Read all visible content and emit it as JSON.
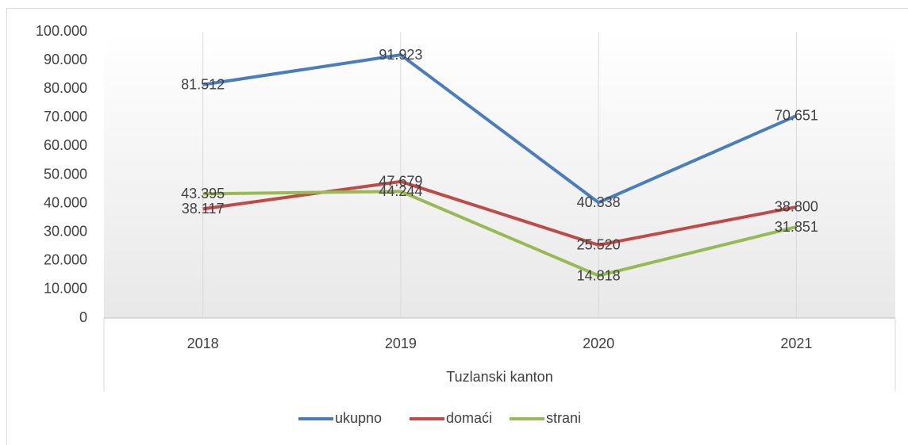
{
  "chart_data": {
    "type": "line",
    "categories": [
      "2018",
      "2019",
      "2020",
      "2021"
    ],
    "group_label": "Tuzlanski kanton",
    "series": [
      {
        "name": "ukupno",
        "color": "#4a7ebb",
        "values": [
          81512,
          91923,
          40338,
          70651
        ],
        "value_labels": [
          "81.512",
          "91.923",
          "40.338",
          "70.651"
        ]
      },
      {
        "name": "domaći",
        "color": "#be4b48",
        "values": [
          38117,
          47679,
          25520,
          38800
        ],
        "value_labels": [
          "38.117",
          "47.679",
          "25.520",
          "38.800"
        ]
      },
      {
        "name": "strani",
        "color": "#98b954",
        "values": [
          43395,
          44244,
          14818,
          31851
        ],
        "value_labels": [
          "43.395",
          "44.244",
          "14.818",
          "31.851"
        ]
      }
    ],
    "ylim": [
      0,
      100000
    ],
    "yticks": [
      0,
      {
        "value": 10000,
        "label": "10.000"
      },
      {
        "value": 20000,
        "label": "20.000"
      },
      {
        "value": 30000,
        "label": "30.000"
      },
      {
        "value": 40000,
        "label": "40.000"
      },
      {
        "value": 50000,
        "label": "50.000"
      },
      {
        "value": 60000,
        "label": "60.000"
      },
      {
        "value": 70000,
        "label": "70.000"
      },
      {
        "value": 80000,
        "label": "80.000"
      },
      {
        "value": 90000,
        "label": "90.000"
      },
      {
        "value": 100000,
        "label": "100.000"
      }
    ],
    "grid": "x",
    "legend": "bottom"
  }
}
